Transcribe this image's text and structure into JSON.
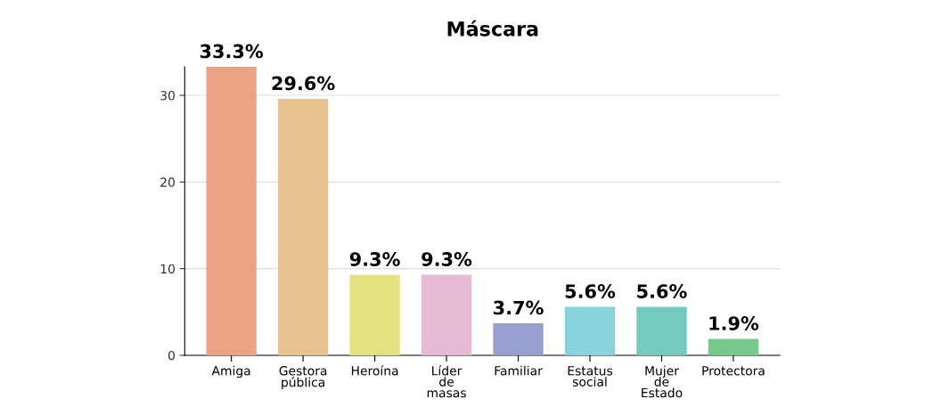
{
  "chart_data": {
    "type": "bar",
    "title": "Máscara",
    "categories": [
      "Amiga",
      "Gestora\npública",
      "Heroína",
      "Líder\nde\nmasas",
      "Familiar",
      "Estatus\nsocial",
      "Mujer\nde\nEstado",
      "Protectora"
    ],
    "values": [
      33.3,
      29.6,
      9.3,
      9.3,
      3.7,
      5.6,
      5.6,
      1.9
    ],
    "colors": [
      "#eba386",
      "#e8c290",
      "#e4e283",
      "#e6b9d7",
      "#98a0d0",
      "#86d3dc",
      "#74cbbd",
      "#76c98b"
    ],
    "value_labels": [
      "33.3%",
      "29.6%",
      "9.3%",
      "9.3%",
      "3.7%",
      "5.6%",
      "5.6%",
      "1.9%"
    ],
    "ylim": [
      0,
      33.3
    ],
    "yticks": [
      0,
      10,
      20,
      30
    ],
    "grid": "y"
  }
}
